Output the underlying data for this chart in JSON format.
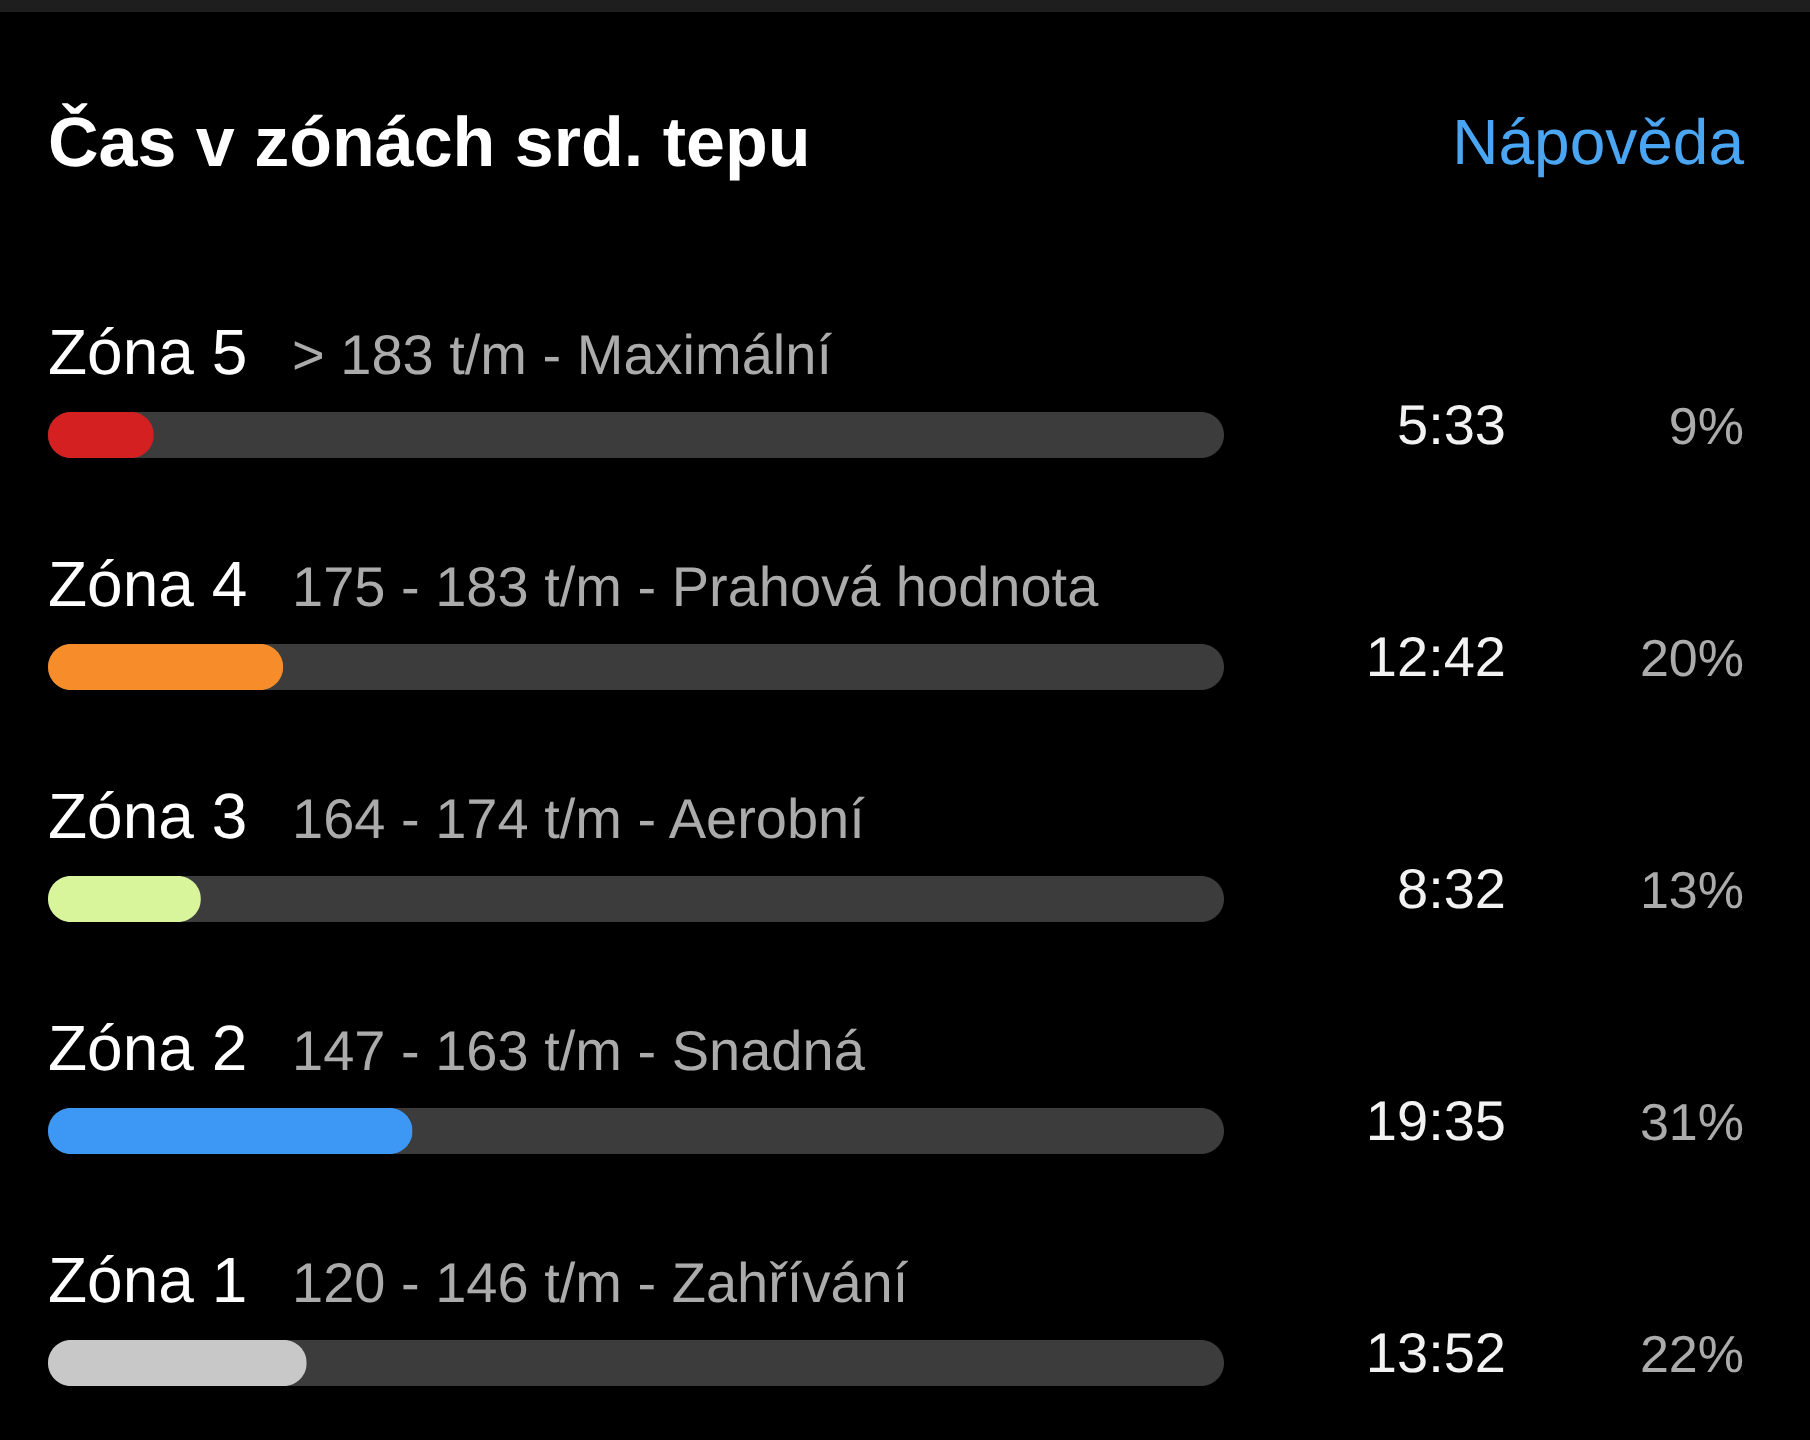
{
  "chart_data": {
    "type": "bar",
    "orientation": "horizontal",
    "title": "Čas v zónách srd. tepu",
    "categories": [
      "Zóna 5",
      "Zóna 4",
      "Zóna 3",
      "Zóna 2",
      "Zóna 1"
    ],
    "values": [
      9,
      20,
      13,
      31,
      22
    ],
    "colors": [
      "#d42020",
      "#f78c2a",
      "#d8f59c",
      "#3d98f5",
      "#c8c8c8"
    ],
    "value_labels": [
      "9%",
      "20%",
      "13%",
      "31%",
      "22%"
    ],
    "xlim": [
      0,
      100
    ],
    "tick_labels": "y",
    "annotations": [
      "Nápověda",
      "> 183 t/m - Maximální",
      "5:33",
      "175 - 183 t/m - Prahová hodnota",
      "12:42",
      "164 - 174 t/m - Aerobní",
      "8:32",
      "147 - 163 t/m - Snadná",
      "19:35",
      "120 - 146 t/m - Zahřívání",
      "13:52"
    ]
  }
}
